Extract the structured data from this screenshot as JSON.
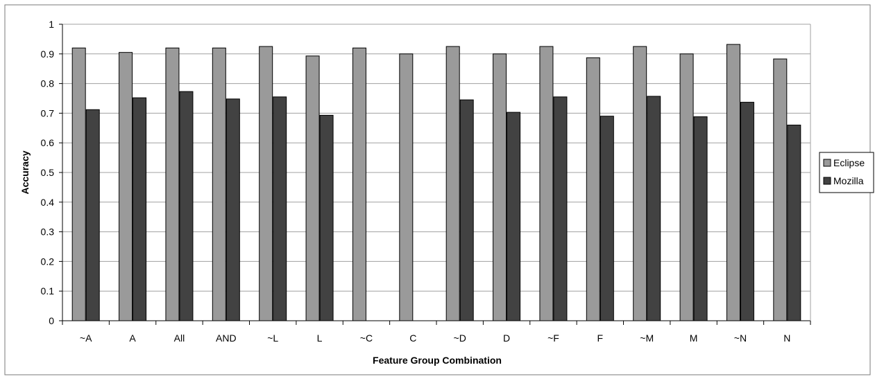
{
  "chart_data": {
    "type": "bar",
    "title": "",
    "xlabel": "Feature Group Combination",
    "ylabel": "Accuracy",
    "ylim": [
      0,
      1
    ],
    "yticks": [
      "0",
      "0.1",
      "0.2",
      "0.3",
      "0.4",
      "0.5",
      "0.6",
      "0.7",
      "0.8",
      "0.9",
      "1"
    ],
    "grid": "horizontal",
    "legend_position": "right",
    "categories": [
      "~A",
      "A",
      "All",
      "AND",
      "~L",
      "L",
      "~C",
      "C",
      "~D",
      "D",
      "~F",
      "F",
      "~M",
      "M",
      "~N",
      "N"
    ],
    "series": [
      {
        "name": "Eclipse",
        "color": "#9a9a9a",
        "values": [
          0.92,
          0.905,
          0.92,
          0.92,
          0.925,
          0.893,
          0.92,
          0.9,
          0.925,
          0.9,
          0.925,
          0.887,
          0.925,
          0.9,
          0.932,
          0.883
        ]
      },
      {
        "name": "Mozilla",
        "color": "#424242",
        "values": [
          0.712,
          0.752,
          0.773,
          0.748,
          0.755,
          0.693,
          null,
          null,
          0.745,
          0.703,
          0.755,
          0.69,
          0.757,
          0.688,
          0.737,
          0.66
        ]
      }
    ]
  }
}
